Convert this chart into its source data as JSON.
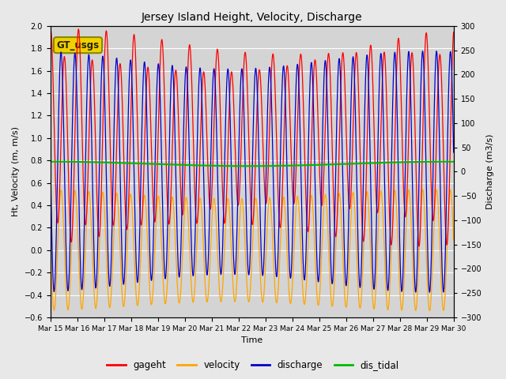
{
  "title": "Jersey Island Height, Velocity, Discharge",
  "xlabel": "Time",
  "ylabel_left": "Ht, Velocity (m, m/s)",
  "ylabel_right": "Discharge (m3/s)",
  "ylim_left": [
    -0.6,
    2.0
  ],
  "ylim_right": [
    -300,
    300
  ],
  "colors": {
    "gageht": "#ff0000",
    "velocity": "#ffa500",
    "discharge": "#0000cc",
    "dis_tidal": "#00bb00"
  },
  "legend_label": "GT_usgs",
  "fig_bg": "#e8e8e8",
  "plot_bg": "#d4d4d4",
  "grid_color": "#ffffff",
  "month_labels": [
    "Mar 15",
    "Mar 16",
    "Mar 17",
    "Mar 18",
    "Mar 19",
    "Mar 20",
    "Mar 21",
    "Mar 22",
    "Mar 23",
    "Mar 24",
    "Mar 25",
    "Mar 26",
    "Mar 27",
    "Mar 28",
    "Mar 29",
    "Mar 30"
  ],
  "yticks_left": [
    -0.6,
    -0.4,
    -0.2,
    0.0,
    0.2,
    0.4,
    0.6,
    0.8,
    1.0,
    1.2,
    1.4,
    1.6,
    1.8,
    2.0
  ],
  "yticks_right": [
    -300,
    -250,
    -200,
    -150,
    -100,
    -50,
    0,
    50,
    100,
    150,
    200,
    250,
    300
  ]
}
